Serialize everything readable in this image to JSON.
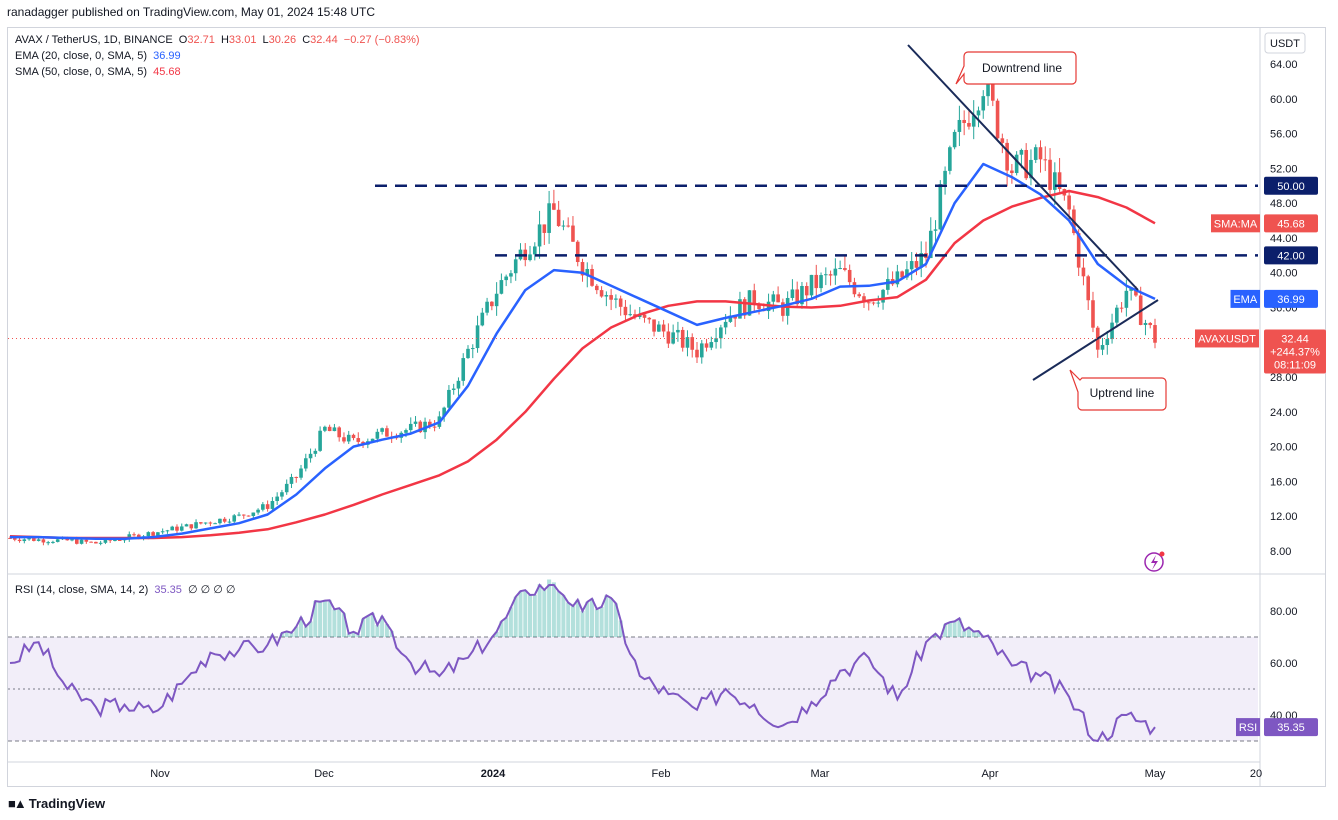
{
  "header": {
    "publisher_line": "ranadagger published on TradingView.com, May 01, 2024 15:48 UTC"
  },
  "legend": {
    "symbol": "AVAX / TetherUS, 1D, BINANCE",
    "open_label": "O",
    "open": "32.71",
    "high_label": "H",
    "high": "33.01",
    "low_label": "L",
    "low": "30.26",
    "close_label": "C",
    "close": "32.44",
    "change": "−0.27 (−0.83%)",
    "ema_name": "EMA (20, close, 0, SMA, 5)",
    "ema_value": "36.99",
    "sma_name": "SMA (50, close, 0, SMA, 5)",
    "sma_value": "45.68",
    "rsi_name": "RSI (14, close, SMA, 14, 2)",
    "rsi_value": "35.35",
    "rsi_extra": "∅ ∅ ∅ ∅"
  },
  "footer": {
    "brand": "TradingView"
  },
  "colors": {
    "up": "#26a69a",
    "down": "#ef5350",
    "ema": "#2962ff",
    "sma": "#f23645",
    "rsi": "#7e57c2",
    "trendline": "#1a2b59",
    "level": "#0b1f6b"
  },
  "chart_data": [
    {
      "type": "candlestick",
      "title": "AVAX / TetherUS, 1D, BINANCE",
      "currency": "USDT",
      "x_ticks": [
        "Nov",
        "Dec",
        "2024",
        "Feb",
        "Mar",
        "Apr",
        "May",
        "20"
      ],
      "y_ticks": [
        "64.00",
        "60.00",
        "56.00",
        "52.00",
        "48.00",
        "44.00",
        "40.00",
        "36.00",
        "32.00",
        "28.00",
        "24.00",
        "20.00",
        "16.00",
        "12.00",
        "8.00"
      ],
      "ylim": [
        6,
        66
      ],
      "price_tags": [
        {
          "label": "USDT",
          "value": ""
        },
        {
          "label": "",
          "value": "50.00"
        },
        {
          "label": "",
          "value": "42.00"
        },
        {
          "label": "SMA:MA",
          "value": "45.68"
        },
        {
          "label": "EMA",
          "value": "36.99"
        },
        {
          "label": "AVAXUSDT",
          "value": "32.44"
        },
        {
          "label": "",
          "value": "+244.37%"
        },
        {
          "label": "",
          "value": "08:11:09"
        }
      ],
      "horizontal_levels": [
        50.0,
        42.0
      ],
      "annotations": [
        {
          "text": "Downtrend line"
        },
        {
          "text": "Uptrend line"
        }
      ],
      "series": [
        {
          "name": "EMA (20, close, 0, SMA, 5)",
          "values": [
            9.6,
            9.6,
            9.5,
            9.4,
            9.4,
            9.6,
            10.0,
            10.6,
            11.2,
            12.2,
            14.5,
            17.5,
            20.0,
            20.8,
            21.5,
            22.8,
            27.0,
            33.0,
            38.0,
            40.3,
            40.0,
            38.5,
            37.0,
            35.5,
            34.0,
            34.8,
            35.5,
            36.2,
            37.0,
            38.4,
            38.5,
            39.0,
            41.0,
            48.0,
            52.5,
            51.0,
            49.0,
            46.0,
            41.0,
            38.5,
            36.99
          ]
        },
        {
          "name": "SMA (50, close, 0, SMA, 5)",
          "values": [
            9.7,
            9.6,
            9.5,
            9.5,
            9.5,
            9.5,
            9.6,
            9.8,
            10.1,
            10.5,
            11.3,
            12.2,
            13.3,
            14.5,
            15.6,
            16.7,
            18.3,
            20.8,
            24.0,
            27.8,
            31.3,
            33.7,
            35.2,
            36.2,
            36.7,
            36.7,
            36.4,
            36.1,
            36.0,
            36.2,
            36.8,
            37.2,
            39.2,
            43.4,
            46.0,
            47.6,
            48.6,
            49.4,
            48.7,
            47.5,
            45.68
          ]
        },
        {
          "name": "Price",
          "values": [
            9.5,
            9.3,
            9.2,
            8.9,
            9.5,
            10.1,
            10.7,
            11.4,
            12.0,
            13.2,
            16.5,
            22.0,
            20.5,
            21.5,
            22.0,
            23.0,
            31.0,
            38.0,
            43.0,
            47.0,
            41.0,
            37.0,
            34.5,
            33.0,
            31.0,
            35.0,
            37.0,
            36.0,
            38.5,
            40.0,
            37.0,
            39.0,
            42.0,
            55.0,
            62.0,
            52.0,
            53.0,
            47.0,
            31.0,
            38.0,
            32.44
          ]
        }
      ]
    },
    {
      "type": "line",
      "title": "RSI (14, close, SMA, 14, 2)",
      "y_ticks": [
        "80.00",
        "60.00",
        "40.00"
      ],
      "ylim": [
        25,
        90
      ],
      "bands": [
        30,
        50,
        70
      ],
      "series": [
        {
          "name": "RSI",
          "values": [
            60,
            68,
            50,
            43,
            44,
            41,
            52,
            64,
            65,
            67,
            74,
            84,
            72,
            78,
            60,
            55,
            62,
            72,
            88,
            91,
            80,
            85,
            55,
            48,
            42,
            50,
            44,
            36,
            45,
            57,
            62,
            46,
            68,
            76,
            70,
            59,
            55,
            47,
            30,
            40,
            35.35
          ]
        }
      ]
    }
  ]
}
